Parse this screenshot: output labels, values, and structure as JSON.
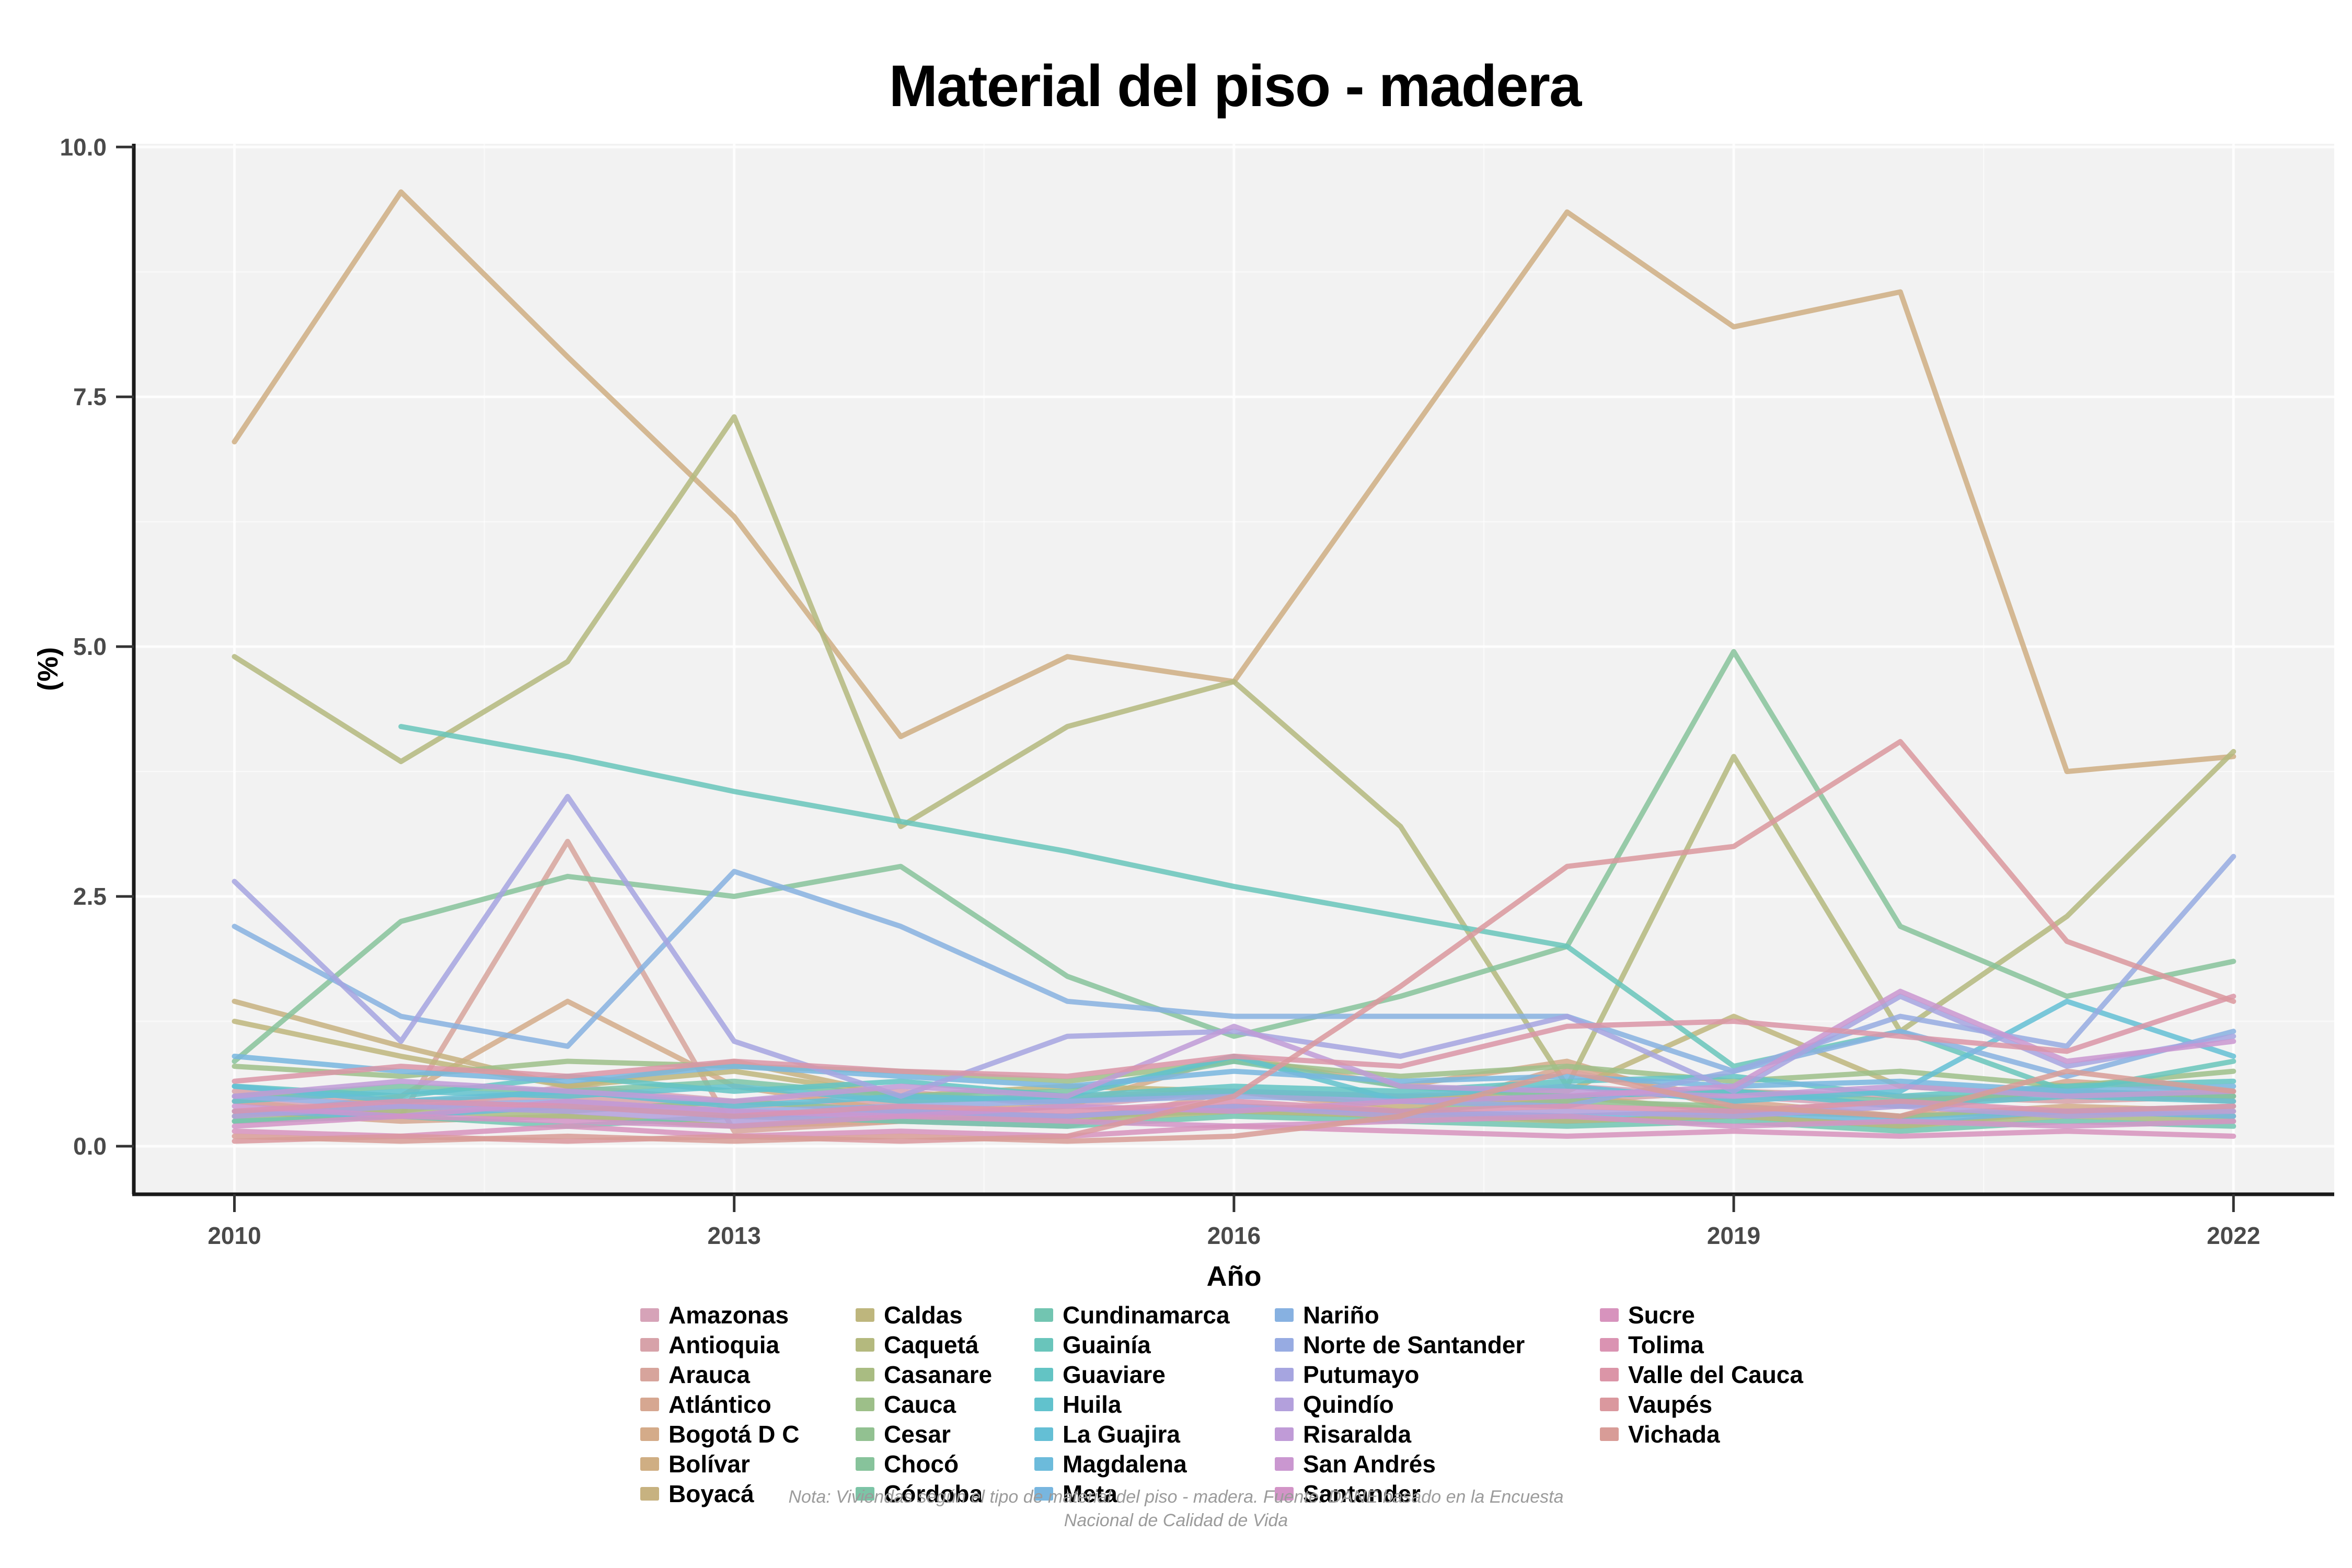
{
  "page": {
    "title": "Material del piso - madera"
  },
  "chart_data": {
    "type": "line",
    "title": "Material del piso - madera",
    "xlabel": "Año",
    "ylabel": "(%)",
    "x": [
      2010,
      2011,
      2012,
      2013,
      2014,
      2015,
      2016,
      2017,
      2018,
      2019,
      2020,
      2021,
      2022
    ],
    "x_ticks": [
      2010,
      2013,
      2016,
      2019,
      2022
    ],
    "x_tick_labels": [
      "2010",
      "2013",
      "2016",
      "2019",
      "2022"
    ],
    "y_ticks": [
      0,
      2.5,
      5,
      7.5,
      10
    ],
    "y_tick_labels": [
      "0.0",
      "2.5",
      "5.0",
      "7.5",
      "10.0"
    ],
    "xlim": [
      2009.4,
      2022.6
    ],
    "ylim": [
      -0.48,
      10.05
    ],
    "grid": true,
    "legend_position": "bottom",
    "panel_color": "#f2f2f2",
    "grid_color": "#ffffff",
    "axis_color": "#1a1a1a",
    "tick_label_color": "#4a4a4a",
    "series": [
      {
        "name": "Amazonas",
        "color": "#d6a3b8",
        "values": [
          0.45,
          0.35,
          0.6,
          0.45,
          0.55,
          0.4,
          0.55,
          0.45,
          0.6,
          0.5,
          0.4,
          0.55,
          0.45
        ]
      },
      {
        "name": "Antioquia",
        "color": "#d7a2a9",
        "values": [
          0.55,
          0.45,
          0.5,
          0.4,
          0.45,
          0.5,
          0.55,
          0.5,
          0.45,
          0.55,
          0.5,
          0.45,
          0.5
        ]
      },
      {
        "name": "Arauca",
        "color": "#d7a49c",
        "values": [
          0.45,
          0.3,
          3.05,
          0.15,
          0.25,
          0.2,
          0.55,
          0.35,
          0.25,
          0.3,
          0.2,
          0.35,
          0.3
        ]
      },
      {
        "name": "Atlántico",
        "color": "#d6a791",
        "values": [
          0.35,
          0.25,
          0.3,
          0.2,
          0.25,
          0.3,
          0.35,
          0.3,
          0.8,
          0.45,
          0.3,
          0.65,
          0.55
        ]
      },
      {
        "name": "Bogotá D C",
        "color": "#d4ab89",
        "values": [
          0.3,
          0.5,
          1.45,
          0.6,
          0.35,
          0.4,
          0.9,
          0.6,
          0.85,
          0.35,
          0.3,
          0.4,
          0.35
        ]
      },
      {
        "name": "Bolívar",
        "color": "#cfae83",
        "values": [
          7.05,
          9.55,
          7.9,
          6.3,
          4.1,
          4.9,
          4.65,
          7.0,
          9.35,
          8.2,
          8.55,
          3.75,
          3.9
        ]
      },
      {
        "name": "Boyacá",
        "color": "#c7b280",
        "values": [
          1.45,
          1.0,
          0.6,
          0.85,
          0.5,
          0.45,
          0.55,
          0.4,
          0.5,
          0.35,
          0.45,
          0.55,
          0.5
        ]
      },
      {
        "name": "Caldas",
        "color": "#beb67d",
        "values": [
          1.25,
          0.9,
          0.6,
          0.75,
          0.5,
          0.6,
          0.55,
          0.5,
          0.55,
          1.3,
          0.6,
          0.5,
          0.55
        ]
      },
      {
        "name": "Caquetá",
        "color": "#b4b97e",
        "values": [
          4.9,
          3.85,
          4.85,
          7.3,
          3.2,
          4.2,
          4.65,
          3.2,
          0.6,
          3.9,
          1.15,
          2.3,
          3.95
        ]
      },
      {
        "name": "Casanare",
        "color": "#a9bc82",
        "values": [
          0.25,
          0.35,
          0.3,
          0.2,
          0.3,
          0.25,
          0.35,
          0.3,
          0.25,
          0.3,
          0.2,
          0.3,
          0.25
        ]
      },
      {
        "name": "Cauca",
        "color": "#9dbf89",
        "values": [
          0.8,
          0.7,
          0.85,
          0.8,
          0.75,
          0.65,
          0.85,
          0.7,
          0.8,
          0.65,
          0.75,
          0.6,
          0.75
        ]
      },
      {
        "name": "Cesar",
        "color": "#92c191",
        "values": [
          0.3,
          0.4,
          0.35,
          0.45,
          0.35,
          0.3,
          0.4,
          0.35,
          0.45,
          0.4,
          0.3,
          0.35,
          0.4
        ]
      },
      {
        "name": "Chocó",
        "color": "#87c39b",
        "values": [
          0.85,
          2.25,
          2.7,
          2.5,
          2.8,
          1.7,
          1.1,
          1.5,
          2.0,
          4.95,
          2.2,
          1.5,
          1.85
        ]
      },
      {
        "name": "Córdoba",
        "color": "#7cc4a6",
        "values": [
          0.5,
          0.6,
          0.55,
          0.65,
          0.5,
          0.55,
          0.85,
          0.6,
          0.5,
          0.55,
          0.45,
          0.55,
          0.5
        ]
      },
      {
        "name": "Cundinamarca",
        "color": "#72c5b1",
        "values": [
          0.25,
          0.3,
          0.2,
          0.3,
          0.25,
          0.2,
          0.3,
          0.25,
          0.2,
          0.25,
          0.15,
          0.25,
          0.2
        ]
      },
      {
        "name": "Guainía",
        "color": "#69c5bb",
        "values": [
          null,
          4.2,
          3.9,
          3.55,
          3.25,
          2.95,
          2.6,
          2.3,
          2.0,
          0.8,
          1.15,
          0.55,
          0.85
        ]
      },
      {
        "name": "Guaviare",
        "color": "#63c4c4",
        "values": [
          0.6,
          0.5,
          0.7,
          0.55,
          0.65,
          0.5,
          0.6,
          0.55,
          0.65,
          0.7,
          0.5,
          0.6,
          0.65
        ]
      },
      {
        "name": "Huila",
        "color": "#61c2cd",
        "values": [
          0.45,
          0.55,
          0.5,
          0.6,
          0.45,
          0.5,
          0.9,
          0.45,
          0.5,
          0.55,
          0.4,
          0.5,
          0.45
        ]
      },
      {
        "name": "La Guajira",
        "color": "#64bfd5",
        "values": [
          0.6,
          0.45,
          0.55,
          0.4,
          0.5,
          0.45,
          0.55,
          0.5,
          0.6,
          0.45,
          0.55,
          1.45,
          0.9
        ]
      },
      {
        "name": "Magdalena",
        "color": "#6cbbdb",
        "values": [
          0.35,
          0.3,
          0.4,
          0.3,
          0.35,
          0.3,
          0.4,
          0.35,
          0.3,
          0.35,
          0.25,
          0.35,
          0.3
        ]
      },
      {
        "name": "Meta",
        "color": "#78b6df",
        "values": [
          0.9,
          0.75,
          0.65,
          0.8,
          0.7,
          0.6,
          0.75,
          0.65,
          0.7,
          0.6,
          0.65,
          0.55,
          0.6
        ]
      },
      {
        "name": "Nariño",
        "color": "#87b1e1",
        "values": [
          2.2,
          1.3,
          1.0,
          2.75,
          2.2,
          1.45,
          1.3,
          1.3,
          1.3,
          0.75,
          1.15,
          0.7,
          1.15
        ]
      },
      {
        "name": "Norte de Santander",
        "color": "#97abe2",
        "values": [
          0.5,
          0.4,
          0.45,
          0.35,
          0.4,
          0.45,
          0.5,
          0.45,
          0.4,
          0.75,
          1.3,
          1.0,
          2.9
        ]
      },
      {
        "name": "Putumayo",
        "color": "#a6a5e0",
        "values": [
          2.65,
          1.05,
          3.5,
          1.05,
          0.5,
          1.1,
          1.15,
          0.9,
          1.3,
          0.55,
          1.5,
          0.8,
          1.1
        ]
      },
      {
        "name": "Quindío",
        "color": "#b3a0dc",
        "values": [
          0.3,
          0.4,
          0.35,
          0.25,
          0.35,
          0.3,
          0.4,
          0.3,
          0.35,
          0.3,
          0.4,
          0.3,
          0.35
        ]
      },
      {
        "name": "Risaralda",
        "color": "#c09bd7",
        "values": [
          0.5,
          0.65,
          0.55,
          0.45,
          0.6,
          0.5,
          1.2,
          0.6,
          0.55,
          0.5,
          0.6,
          0.5,
          0.55
        ]
      },
      {
        "name": "San Andrés",
        "color": "#ca97d0",
        "values": [
          0.4,
          0.3,
          0.45,
          0.35,
          0.3,
          0.4,
          0.35,
          0.45,
          0.5,
          0.6,
          1.55,
          0.85,
          1.05
        ]
      },
      {
        "name": "Santander",
        "color": "#d294c7",
        "values": [
          0.2,
          0.3,
          0.25,
          0.2,
          0.3,
          0.25,
          0.2,
          0.25,
          0.3,
          0.2,
          0.25,
          0.2,
          0.25
        ]
      },
      {
        "name": "Sucre",
        "color": "#d793bd",
        "values": [
          0.15,
          0.1,
          0.2,
          0.1,
          0.15,
          0.1,
          0.2,
          0.15,
          0.1,
          0.15,
          0.1,
          0.15,
          0.1
        ]
      },
      {
        "name": "Tolima",
        "color": "#da93b2",
        "values": [
          0.35,
          0.45,
          0.4,
          0.3,
          0.4,
          0.35,
          0.45,
          0.35,
          0.4,
          0.35,
          0.45,
          0.35,
          0.4
        ]
      },
      {
        "name": "Valle del Cauca",
        "color": "#db95a7",
        "values": [
          0.65,
          0.8,
          0.7,
          0.85,
          0.75,
          0.7,
          0.9,
          0.8,
          1.2,
          1.25,
          1.1,
          0.95,
          1.5
        ]
      },
      {
        "name": "Vaupés",
        "color": "#da989e",
        "values": [
          0.05,
          0.1,
          0.05,
          0.1,
          0.05,
          0.1,
          0.5,
          1.6,
          2.8,
          3.0,
          4.05,
          2.05,
          1.45
        ]
      },
      {
        "name": "Vichada",
        "color": "#d89c97",
        "values": [
          0.1,
          0.05,
          0.1,
          0.05,
          0.1,
          0.05,
          0.1,
          0.3,
          0.75,
          0.4,
          0.3,
          0.75,
          0.55
        ]
      }
    ]
  },
  "legend": {
    "columns": [
      7,
      7,
      7,
      7,
      5
    ]
  },
  "footnote": {
    "line1": "Nota: Viviendas según el tipo de material del piso - madera. Fuente: DANE basado en la Encuesta",
    "line2": "Nacional de Calidad de Vida"
  }
}
